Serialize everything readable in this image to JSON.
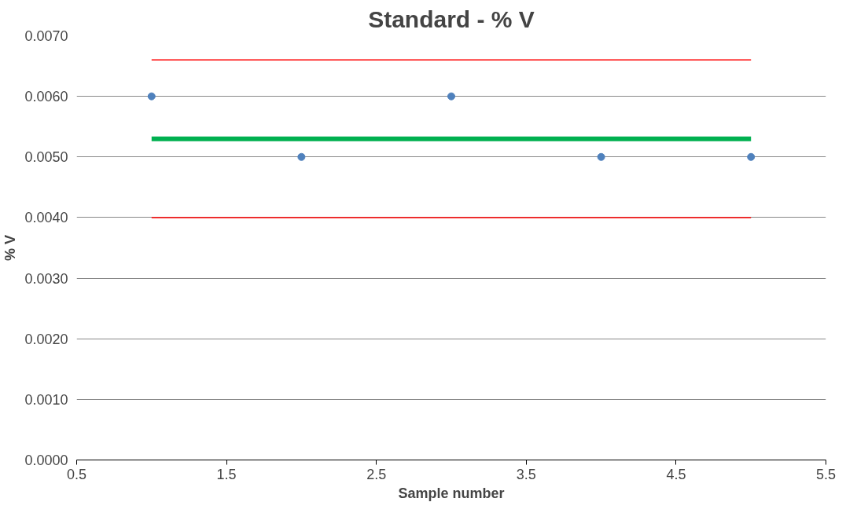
{
  "chart_data": {
    "type": "line",
    "title": "Standard - % V",
    "xlabel": "Sample number",
    "ylabel": "% V",
    "series": [
      {
        "type": "scatter",
        "marker": "circle",
        "color": "#4f81bd",
        "x": [
          1,
          2,
          3,
          4,
          5
        ],
        "values": [
          0.006,
          0.005,
          0.006,
          0.005,
          0.005
        ]
      },
      {
        "color": "#ff0000",
        "x": [
          1,
          5
        ],
        "values": [
          0.0066,
          0.0066
        ]
      },
      {
        "color": "#00b050",
        "x": [
          1,
          5
        ],
        "values": [
          0.0053,
          0.0053
        ]
      },
      {
        "color": "#ff0000",
        "x": [
          1,
          5
        ],
        "values": [
          0.004,
          0.004
        ]
      }
    ],
    "xlim": [
      0.5,
      5.5
    ],
    "xticks": [
      0.5,
      1.5,
      2.5,
      3.5,
      4.5,
      5.5
    ],
    "ylim": [
      0,
      0.007
    ],
    "yticks": [
      {
        "value": 0,
        "label": "0.0000"
      },
      {
        "value": 0.001,
        "label": "0.0010"
      },
      {
        "value": 0.002,
        "label": "0.0020"
      },
      {
        "value": 0.003,
        "label": "0.0030"
      },
      {
        "value": 0.004,
        "label": "0.0040"
      },
      {
        "value": 0.005,
        "label": "0.0050"
      },
      {
        "value": 0.006,
        "label": "0.0060"
      },
      {
        "value": 0.007,
        "label": "0.0070"
      }
    ],
    "grid": "y"
  }
}
